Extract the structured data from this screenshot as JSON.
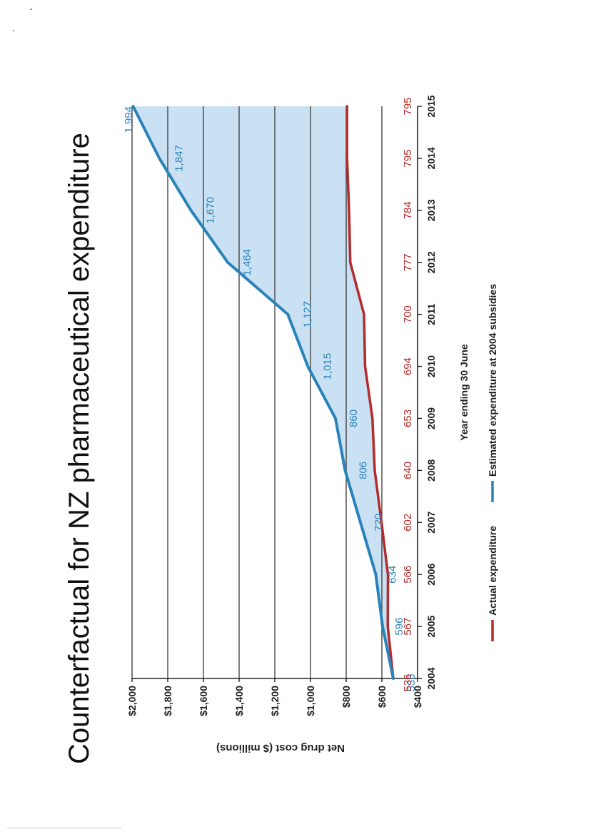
{
  "chart_data": {
    "type": "line",
    "orientation": "rotated-90-counterclockwise",
    "title": "Counterfactual for NZ pharmaceutical expenditure",
    "xlabel": "Year ending 30 June",
    "ylabel": "Net drug cost ($ millions)",
    "categories": [
      "2004",
      "2005",
      "2006",
      "2007",
      "2008",
      "2009",
      "2010",
      "2011",
      "2012",
      "2013",
      "2014",
      "2015"
    ],
    "ylim": [
      400,
      2000
    ],
    "yticks": [
      400,
      600,
      800,
      1000,
      1200,
      1400,
      1600,
      1800,
      2000
    ],
    "ytick_labels": [
      "$400",
      "$600",
      "$800",
      "$1,000",
      "$1,200",
      "$1,400",
      "$1,600",
      "$1,800",
      "$2,000"
    ],
    "grid": true,
    "legend_position": "bottom",
    "shaded_region": "between series",
    "series": [
      {
        "name": "Actual expenditure",
        "color": "#b52a2a",
        "values": [
          536,
          567,
          566,
          602,
          640,
          653,
          694,
          700,
          777,
          784,
          795,
          795
        ],
        "labels": [
          "536",
          "567",
          "566",
          "602",
          "640",
          "653",
          "694",
          "700",
          "777",
          "784",
          "795",
          "795"
        ]
      },
      {
        "name": "Estimated expenditure at 2004 subsidies",
        "color": "#2a83b8",
        "values": [
          536,
          596,
          634,
          720,
          806,
          860,
          1015,
          1127,
          1464,
          1670,
          1847,
          1994
        ],
        "labels": [
          "536",
          "596",
          "634",
          "720",
          "806",
          "860",
          "1,015",
          "1,127",
          "1,464",
          "1,670",
          "1,847",
          "1,994"
        ]
      }
    ],
    "shade_color": "#c9e1f3",
    "axis_color": "#222222",
    "grid_color": "#444444"
  }
}
